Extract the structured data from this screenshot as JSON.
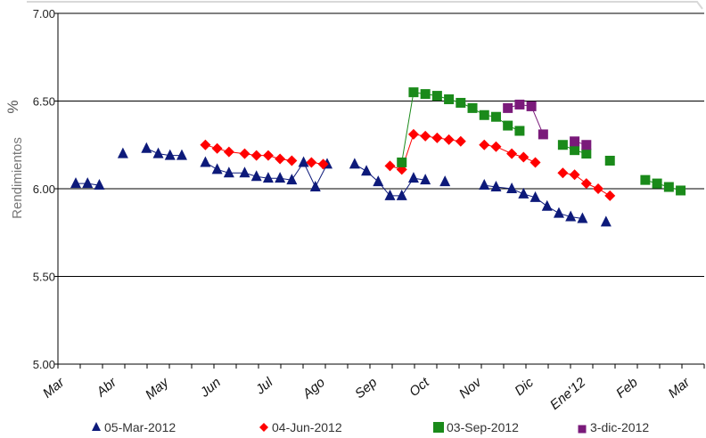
{
  "chart_data": {
    "type": "scatter",
    "title": "",
    "xlabel": "",
    "ylabel": "Rendimientos",
    "ylabel_unit": "%",
    "ylim": [
      5.0,
      7.0
    ],
    "yticks": [
      "5.00",
      "5.50",
      "6.00",
      "6.50",
      "7.00"
    ],
    "x_categories": [
      "Mar",
      "Abr",
      "May",
      "Jun",
      "Jul",
      "Ago",
      "Sep",
      "Oct",
      "Nov",
      "Dic",
      "Ene'12",
      "Feb",
      "Mar"
    ],
    "grid": true,
    "legend_position": "bottom",
    "series": [
      {
        "name": "05-Mar-2012",
        "marker": "triangle",
        "color": "#0d1a7a",
        "points": [
          [
            0.0,
            6.03
          ],
          [
            0.3,
            6.03
          ],
          [
            0.6,
            6.02
          ],
          [
            1.2,
            6.2
          ],
          [
            1.8,
            6.23
          ],
          [
            2.1,
            6.2
          ],
          [
            2.4,
            6.19
          ],
          [
            2.7,
            6.19
          ],
          [
            3.3,
            6.15
          ],
          [
            3.6,
            6.11
          ],
          [
            3.9,
            6.09
          ],
          [
            4.3,
            6.09
          ],
          [
            4.6,
            6.07
          ],
          [
            4.9,
            6.06
          ],
          [
            5.2,
            6.06
          ],
          [
            5.5,
            6.05
          ],
          [
            5.8,
            6.15
          ],
          [
            6.1,
            6.01
          ],
          [
            6.4,
            6.14
          ],
          [
            7.1,
            6.14
          ],
          [
            7.4,
            6.1
          ],
          [
            7.7,
            6.04
          ],
          [
            8.0,
            5.96
          ],
          [
            8.3,
            5.96
          ],
          [
            8.6,
            6.06
          ],
          [
            8.9,
            6.05
          ],
          [
            9.4,
            6.04
          ],
          [
            10.4,
            6.02
          ],
          [
            10.7,
            6.01
          ],
          [
            11.1,
            6.0
          ],
          [
            11.4,
            5.97
          ],
          [
            11.7,
            5.95
          ],
          [
            12.0,
            5.9
          ],
          [
            12.3,
            5.86
          ],
          [
            12.6,
            5.84
          ],
          [
            12.9,
            5.83
          ],
          [
            13.5,
            5.81
          ]
        ]
      },
      {
        "name": "04-Jun-2012",
        "marker": "diamond",
        "color": "#ff0000",
        "points": [
          [
            3.3,
            6.25
          ],
          [
            3.6,
            6.23
          ],
          [
            3.9,
            6.21
          ],
          [
            4.3,
            6.2
          ],
          [
            4.6,
            6.19
          ],
          [
            4.9,
            6.19
          ],
          [
            5.2,
            6.17
          ],
          [
            5.5,
            6.16
          ],
          [
            6.0,
            6.15
          ],
          [
            6.3,
            6.14
          ],
          [
            8.0,
            6.13
          ],
          [
            8.3,
            6.11
          ],
          [
            8.6,
            6.31
          ],
          [
            8.9,
            6.3
          ],
          [
            9.2,
            6.29
          ],
          [
            9.5,
            6.28
          ],
          [
            9.8,
            6.27
          ],
          [
            10.4,
            6.25
          ],
          [
            10.7,
            6.24
          ],
          [
            11.1,
            6.2
          ],
          [
            11.4,
            6.18
          ],
          [
            11.7,
            6.15
          ],
          [
            12.4,
            6.09
          ],
          [
            12.7,
            6.08
          ],
          [
            13.0,
            6.03
          ],
          [
            13.3,
            6.0
          ],
          [
            13.6,
            5.96
          ]
        ]
      },
      {
        "name": "03-Sep-2012",
        "marker": "square",
        "color": "#1a8a1a",
        "points": [
          [
            8.3,
            6.15
          ],
          [
            8.6,
            6.55
          ],
          [
            8.9,
            6.54
          ],
          [
            9.2,
            6.53
          ],
          [
            9.5,
            6.51
          ],
          [
            9.8,
            6.49
          ],
          [
            10.1,
            6.46
          ],
          [
            10.4,
            6.42
          ],
          [
            10.7,
            6.41
          ],
          [
            11.0,
            6.36
          ],
          [
            11.3,
            6.33
          ],
          [
            12.4,
            6.25
          ],
          [
            12.7,
            6.22
          ],
          [
            13.0,
            6.2
          ],
          [
            13.6,
            6.16
          ],
          [
            14.5,
            6.05
          ],
          [
            14.8,
            6.03
          ],
          [
            15.1,
            6.01
          ],
          [
            15.4,
            5.99
          ]
        ]
      },
      {
        "name": "3-dic-2012",
        "marker": "square",
        "color": "#7a1a7a",
        "points": [
          [
            11.0,
            6.46
          ],
          [
            11.3,
            6.48
          ],
          [
            11.6,
            6.47
          ],
          [
            11.9,
            6.31
          ],
          [
            12.7,
            6.27
          ],
          [
            13.0,
            6.25
          ]
        ]
      }
    ]
  }
}
